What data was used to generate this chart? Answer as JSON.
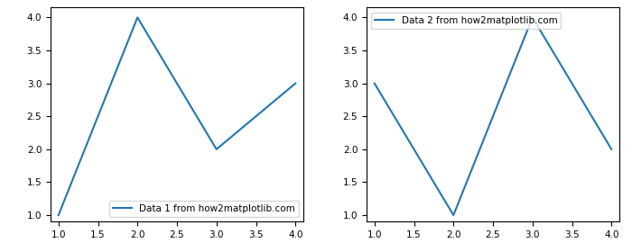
{
  "plot1": {
    "x": [
      1,
      2,
      3,
      4
    ],
    "y": [
      1,
      4,
      2,
      3
    ],
    "label": "Data 1 from how2matplotlib.com",
    "legend_loc": "lower right"
  },
  "plot2": {
    "x": [
      1,
      2,
      3,
      4
    ],
    "y": [
      3,
      1,
      4,
      2
    ],
    "label": "Data 2 from how2matplotlib.com",
    "legend_loc": "upper left"
  },
  "line_color": "#1f77b4",
  "xlim": [
    0.9,
    4.1
  ],
  "ylim": [
    0.9,
    4.15
  ],
  "xticks": [
    1.0,
    1.5,
    2.0,
    2.5,
    3.0,
    3.5,
    4.0
  ],
  "yticks": [
    1.0,
    1.5,
    2.0,
    2.5,
    3.0,
    3.5,
    4.0
  ],
  "tick_labelsize": 7.5,
  "legend_fontsize": 7.5
}
